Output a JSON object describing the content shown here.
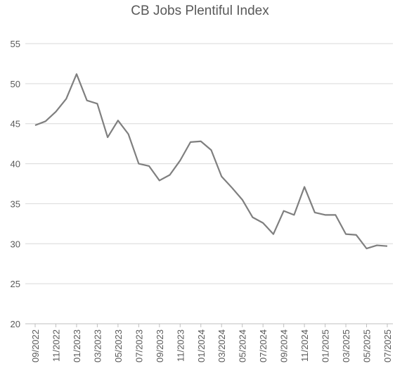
{
  "chart_data": {
    "type": "line",
    "title": "CB Jobs Plentiful Index",
    "xlabel": "",
    "ylabel": "",
    "ylim": [
      20,
      55
    ],
    "yticks": [
      20,
      25,
      30,
      35,
      40,
      45,
      50,
      55
    ],
    "grid": true,
    "legend": "none",
    "line_color": "#7f7f7f",
    "grid_color": "#d9d9d9",
    "x": [
      "09/2022",
      "10/2022",
      "11/2022",
      "12/2022",
      "01/2023",
      "02/2023",
      "03/2023",
      "04/2023",
      "05/2023",
      "06/2023",
      "07/2023",
      "08/2023",
      "09/2023",
      "10/2023",
      "11/2023",
      "12/2023",
      "01/2024",
      "02/2024",
      "03/2024",
      "04/2024",
      "05/2024",
      "06/2024",
      "07/2024",
      "08/2024",
      "09/2024",
      "10/2024",
      "11/2024",
      "12/2024",
      "01/2025",
      "02/2025",
      "03/2025",
      "04/2025",
      "05/2025",
      "06/2025",
      "07/2025"
    ],
    "xtick_labels": [
      "09/2022",
      "11/2022",
      "01/2023",
      "03/2023",
      "05/2023",
      "07/2023",
      "09/2023",
      "11/2023",
      "01/2024",
      "03/2024",
      "05/2024",
      "07/2024",
      "09/2024",
      "11/2024",
      "01/2025",
      "03/2025",
      "05/2025",
      "07/2025"
    ],
    "series": [
      {
        "values": [
          44.8,
          45.3,
          46.5,
          48.1,
          51.2,
          47.9,
          47.5,
          43.3,
          45.4,
          43.7,
          40.0,
          39.7,
          37.9,
          38.6,
          40.4,
          42.7,
          42.8,
          41.7,
          38.4,
          37.0,
          35.5,
          33.3,
          32.6,
          31.2,
          34.1,
          33.6,
          37.1,
          33.9,
          33.6,
          33.6,
          31.2,
          31.1,
          29.4,
          29.8,
          29.7
        ]
      }
    ]
  }
}
